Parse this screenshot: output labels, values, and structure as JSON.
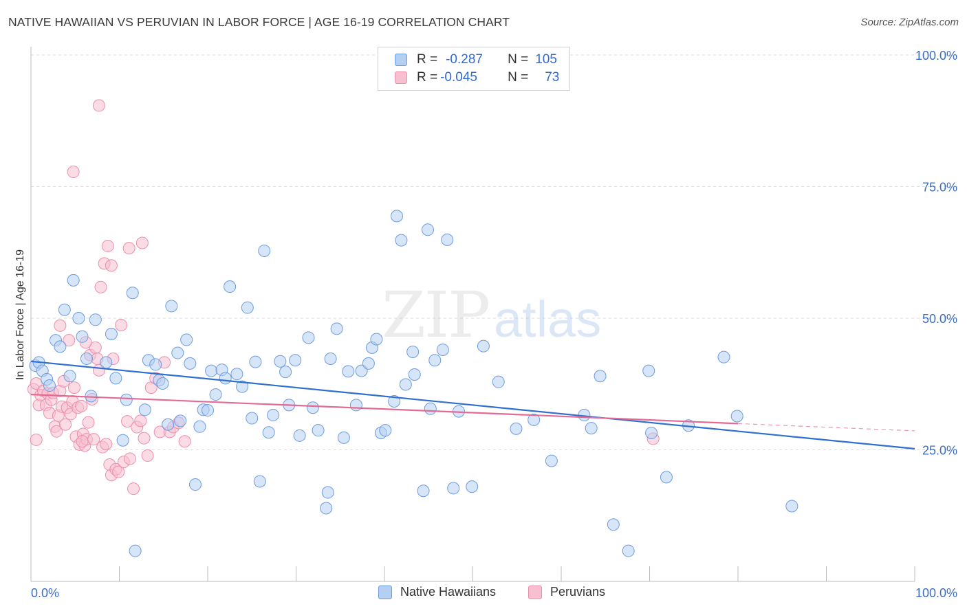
{
  "title": "NATIVE HAWAIIAN VS PERUVIAN IN LABOR FORCE | AGE 16-19 CORRELATION CHART",
  "source": "Source: ZipAtlas.com",
  "watermark": {
    "zip": "ZIP",
    "atlas": "atlas"
  },
  "legend": {
    "row1": {
      "r_label": "R =",
      "r_value": "-0.287",
      "n_label": "N =",
      "n_value": "105"
    },
    "row2": {
      "r_label": "R =",
      "r_value": "-0.045",
      "n_label": "N =",
      "n_value": "73"
    }
  },
  "bottom_legend": {
    "series1": "Native Hawaiians",
    "series2": "Peruvians"
  },
  "colors": {
    "blue_fill": "#b5cff2",
    "blue_stroke": "#6d9be0",
    "blue_line": "#2f6fd0",
    "pink_fill": "#f7bfd0",
    "pink_stroke": "#ec8eac",
    "pink_line": "#e26a94",
    "axis_text": "#3b6fc4",
    "grid": "#dcdcdc"
  },
  "chart_data": {
    "type": "scatter",
    "title": "NATIVE HAWAIIAN VS PERUVIAN IN LABOR FORCE | AGE 16-19 CORRELATION CHART",
    "xlabel": "",
    "ylabel": "In Labor Force | Age 16-19",
    "xlim": [
      0,
      100
    ],
    "ylim": [
      0,
      100
    ],
    "x_tick_labels": [
      "0.0%",
      "100.0%"
    ],
    "y_ticks": [
      25,
      50,
      75,
      100
    ],
    "y_tick_labels": [
      "25.0%",
      "50.0%",
      "75.0%",
      "100.0%"
    ],
    "grid": true,
    "legend_position": "top-center",
    "series": [
      {
        "name": "Native Hawaiians",
        "r": -0.287,
        "n": 105,
        "trend": {
          "x": [
            0,
            100
          ],
          "y": [
            41.8,
            25.2
          ]
        },
        "points": [
          [
            0.5,
            41
          ],
          [
            0.9,
            41.6
          ],
          [
            1.3,
            40
          ],
          [
            1.8,
            38.4
          ],
          [
            2.1,
            37.2
          ],
          [
            2.8,
            45.8
          ],
          [
            3.3,
            44.6
          ],
          [
            3.8,
            51.6
          ],
          [
            4.4,
            39
          ],
          [
            4.8,
            57.2
          ],
          [
            5.4,
            50
          ],
          [
            5.8,
            46.5
          ],
          [
            6.3,
            42.3
          ],
          [
            6.8,
            35.2
          ],
          [
            7.3,
            49.7
          ],
          [
            8.5,
            41.6
          ],
          [
            9.1,
            47
          ],
          [
            9.6,
            38.6
          ],
          [
            10.4,
            26.8
          ],
          [
            10.8,
            34.5
          ],
          [
            11.5,
            54.8
          ],
          [
            11.8,
            5.8
          ],
          [
            12.9,
            32.6
          ],
          [
            13.3,
            42
          ],
          [
            14.1,
            41.2
          ],
          [
            14.5,
            38.2
          ],
          [
            14.9,
            37.6
          ],
          [
            15.5,
            29.8
          ],
          [
            15.9,
            52.3
          ],
          [
            16.6,
            43.4
          ],
          [
            16.9,
            30.5
          ],
          [
            17.6,
            45.9
          ],
          [
            18,
            41.4
          ],
          [
            18.6,
            18.4
          ],
          [
            19.1,
            29.4
          ],
          [
            19.5,
            32.6
          ],
          [
            20,
            32.5
          ],
          [
            20.4,
            40
          ],
          [
            20.9,
            35.5
          ],
          [
            21.6,
            40.2
          ],
          [
            22,
            38.6
          ],
          [
            22.5,
            56
          ],
          [
            23.3,
            39.4
          ],
          [
            23.9,
            37
          ],
          [
            24.5,
            52
          ],
          [
            25,
            31
          ],
          [
            25.4,
            41.7
          ],
          [
            25.9,
            19
          ],
          [
            26.4,
            62.8
          ],
          [
            26.9,
            28.3
          ],
          [
            27.4,
            31.6
          ],
          [
            28.2,
            41.8
          ],
          [
            28.8,
            39.8
          ],
          [
            29.2,
            33.5
          ],
          [
            29.9,
            42
          ],
          [
            30.4,
            27.7
          ],
          [
            31.4,
            46.3
          ],
          [
            31.9,
            33
          ],
          [
            32.5,
            28.7
          ],
          [
            33.4,
            13.9
          ],
          [
            33.6,
            16.9
          ],
          [
            33.9,
            42.3
          ],
          [
            34.6,
            48
          ],
          [
            35.4,
            27.3
          ],
          [
            35.9,
            39.9
          ],
          [
            36.8,
            33.5
          ],
          [
            37.4,
            40
          ],
          [
            38.2,
            41.4
          ],
          [
            38.6,
            44.4
          ],
          [
            39.1,
            46
          ],
          [
            39.6,
            28.2
          ],
          [
            40.1,
            28.7
          ],
          [
            41.1,
            34.2
          ],
          [
            41.4,
            69.4
          ],
          [
            41.9,
            64.8
          ],
          [
            42.4,
            37.4
          ],
          [
            43.2,
            43.6
          ],
          [
            43.4,
            39.3
          ],
          [
            44.4,
            17.2
          ],
          [
            44.9,
            66.8
          ],
          [
            45.2,
            32.8
          ],
          [
            45.7,
            42
          ],
          [
            46.6,
            44
          ],
          [
            47.1,
            64.9
          ],
          [
            47.8,
            17.7
          ],
          [
            48.4,
            32.3
          ],
          [
            49.9,
            18
          ],
          [
            51.2,
            44.7
          ],
          [
            52.9,
            37.9
          ],
          [
            54.9,
            29
          ],
          [
            56.9,
            30.7
          ],
          [
            58.9,
            22.9
          ],
          [
            62.6,
            31.6
          ],
          [
            63.4,
            29.1
          ],
          [
            64.4,
            39
          ],
          [
            65.9,
            10.8
          ],
          [
            67.6,
            5.8
          ],
          [
            69.9,
            40
          ],
          [
            70.2,
            28.2
          ],
          [
            71.9,
            19.8
          ],
          [
            74.4,
            29.6
          ],
          [
            78.4,
            42.6
          ],
          [
            79.9,
            31.4
          ],
          [
            86.1,
            14.3
          ]
        ]
      },
      {
        "name": "Peruvians",
        "r": -0.045,
        "n": 73,
        "trend": {
          "x": [
            0,
            100
          ],
          "y": [
            35.5,
            28.6
          ]
        },
        "points": [
          [
            0.3,
            36.5
          ],
          [
            0.6,
            37.6
          ],
          [
            0.9,
            33.5
          ],
          [
            1.1,
            35.4
          ],
          [
            1.4,
            36.2
          ],
          [
            1.7,
            33.5
          ],
          [
            1.9,
            35.7
          ],
          [
            2.1,
            32
          ],
          [
            2.3,
            34.5
          ],
          [
            2.5,
            35.8
          ],
          [
            2.7,
            29.4
          ],
          [
            2.9,
            28.5
          ],
          [
            3.1,
            31.5
          ],
          [
            3.3,
            36.2
          ],
          [
            3.5,
            33.2
          ],
          [
            3.7,
            38
          ],
          [
            3.9,
            29.8
          ],
          [
            4.1,
            33
          ],
          [
            4.3,
            45.8
          ],
          [
            4.5,
            31.8
          ],
          [
            4.7,
            34.2
          ],
          [
            4.9,
            36.8
          ],
          [
            5.1,
            27.5
          ],
          [
            5.3,
            33
          ],
          [
            5.5,
            26
          ],
          [
            5.7,
            33.3
          ],
          [
            5.9,
            28
          ],
          [
            6.1,
            25.8
          ],
          [
            6.3,
            27
          ],
          [
            6.5,
            30.2
          ],
          [
            6.7,
            43
          ],
          [
            6.9,
            34.6
          ],
          [
            7.1,
            27
          ],
          [
            7.3,
            44.4
          ],
          [
            7.5,
            42.3
          ],
          [
            7.7,
            40.1
          ],
          [
            7.9,
            55.9
          ],
          [
            8.1,
            25.5
          ],
          [
            8.3,
            60.4
          ],
          [
            8.5,
            26.1
          ],
          [
            8.7,
            63.7
          ],
          [
            8.9,
            22.2
          ],
          [
            9.1,
            20.2
          ],
          [
            9.3,
            42.3
          ],
          [
            9.6,
            21.3
          ],
          [
            9.9,
            20.8
          ],
          [
            10.2,
            48.7
          ],
          [
            10.5,
            22.7
          ],
          [
            10.9,
            30.4
          ],
          [
            11.2,
            23.3
          ],
          [
            11.6,
            17.6
          ],
          [
            12,
            29.3
          ],
          [
            12.4,
            30.5
          ],
          [
            12.8,
            27.2
          ],
          [
            13.2,
            23.9
          ],
          [
            13.6,
            36.8
          ],
          [
            14.1,
            38.6
          ],
          [
            14.6,
            28.4
          ],
          [
            15.1,
            41.6
          ],
          [
            15.7,
            28.4
          ],
          [
            16.1,
            29.3
          ],
          [
            16.7,
            30.1
          ],
          [
            17.4,
            26.6
          ],
          [
            3.3,
            48.6
          ],
          [
            4.8,
            77.8
          ],
          [
            7.7,
            90.4
          ],
          [
            9.1,
            60
          ],
          [
            11.1,
            63.3
          ],
          [
            12.6,
            64.3
          ],
          [
            6.2,
            45.4
          ],
          [
            5.8,
            26.6
          ],
          [
            70.4,
            27.1
          ],
          [
            0.6,
            26.9
          ]
        ]
      }
    ]
  }
}
